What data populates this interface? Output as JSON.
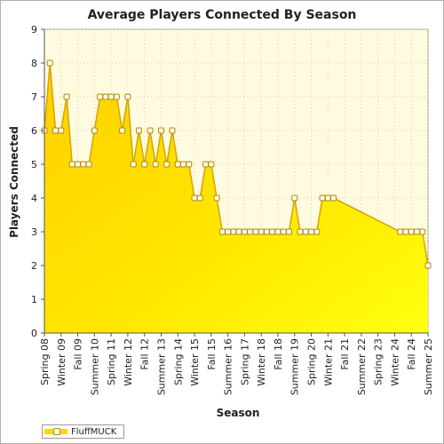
{
  "chart_data": {
    "type": "area",
    "title": "Average Players Connected By Season",
    "xlabel": "Season",
    "ylabel": "Players Connected",
    "ylim": [
      0,
      9
    ],
    "yticks": [
      "0",
      "1",
      "2",
      "3",
      "4",
      "5",
      "6",
      "7",
      "8",
      "9"
    ],
    "categories": [
      "Spring 08",
      "Summer 08",
      "Fall 08",
      "Winter 09",
      "Spring 09",
      "Summer 09",
      "Fall 09",
      "Winter 10",
      "Spring 10",
      "Summer 10",
      "Fall 10",
      "Winter 11",
      "Spring 11",
      "Summer 11",
      "Fall 11",
      "Winter 12",
      "Spring 12",
      "Summer 12",
      "Fall 12",
      "Winter 13",
      "Spring 13",
      "Summer 13",
      "Fall 13",
      "Winter 14",
      "Spring 14",
      "Summer 14",
      "Fall 14",
      "Winter 15",
      "Spring 15",
      "Summer 15",
      "Fall 15",
      "Winter 16",
      "Spring 16",
      "Summer 16",
      "Fall 16",
      "Winter 17",
      "Spring 17",
      "Summer 17",
      "Fall 17",
      "Winter 18",
      "Spring 18",
      "Summer 18",
      "Fall 18",
      "Winter 19",
      "Spring 19",
      "Summer 19",
      "Fall 19",
      "Winter 20",
      "Spring 20",
      "Summer 20",
      "Fall 20",
      "Winter 21",
      "Spring 21",
      "Summer 21",
      "Fall 21",
      "Winter 22",
      "Spring 22",
      "Summer 22",
      "Fall 22",
      "Winter 23",
      "Spring 23",
      "Summer 23",
      "Fall 23",
      "Winter 24",
      "Spring 24",
      "Summer 24",
      "Fall 24",
      "Winter 25",
      "Spring 25",
      "Summer 25"
    ],
    "visible_tick_labels": [
      "Spring 08",
      "Winter 09",
      "Fall 09",
      "Summer 10",
      "Spring 11",
      "Winter 12",
      "Fall 12",
      "Summer 13",
      "Spring 14",
      "Winter 15",
      "Fall 15",
      "Summer 16",
      "Spring 17",
      "Winter 18",
      "Fall 18",
      "Summer 19",
      "Spring 20",
      "Winter 21",
      "Fall 21",
      "Summer 22",
      "Spring 23",
      "Winter 24",
      "Fall 24",
      "Summer 25"
    ],
    "series": [
      {
        "name": "FluffMUCK",
        "color": "#ffd700",
        "values": [
          6,
          8,
          6,
          6,
          7,
          5,
          5,
          5,
          5,
          6,
          7,
          7,
          7,
          7,
          6,
          7,
          5,
          6,
          5,
          6,
          5,
          6,
          5,
          6,
          5,
          5,
          5,
          4,
          4,
          5,
          5,
          4,
          3,
          3,
          3,
          3,
          3,
          3,
          3,
          3,
          3,
          3,
          3,
          3,
          3,
          4,
          3,
          3,
          3,
          3,
          4,
          4,
          4,
          null,
          null,
          null,
          null,
          null,
          null,
          null,
          null,
          null,
          null,
          null,
          3,
          3,
          3,
          3,
          3,
          2
        ]
      }
    ],
    "grid": true,
    "legend_position": "bottom-left",
    "colors": {
      "plot_background": "#fffbe0",
      "fill": "#ffd700",
      "line": "#d2a400",
      "marker_fill": "#fffbe6",
      "marker_stroke": "#b08a00",
      "grid": "#d8d2a8"
    }
  }
}
